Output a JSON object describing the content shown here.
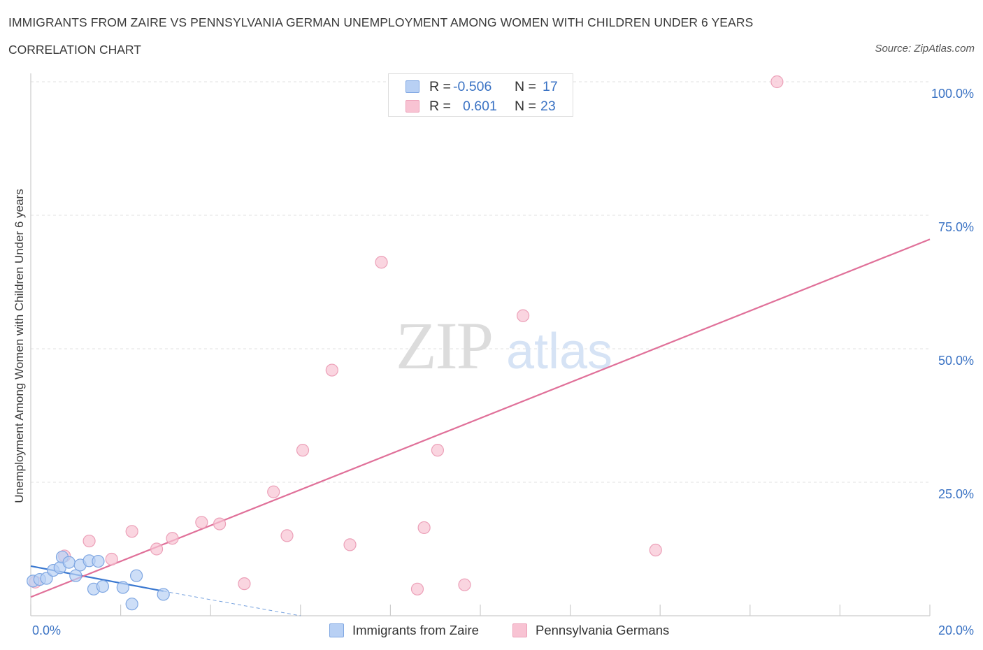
{
  "title": "IMMIGRANTS FROM ZAIRE VS PENNSYLVANIA GERMAN UNEMPLOYMENT AMONG WOMEN WITH CHILDREN UNDER 6 YEARS",
  "subtitle": "CORRELATION CHART",
  "source": "Source: ZipAtlas.com",
  "watermark": {
    "zip": "ZIP",
    "atlas": "atlas"
  },
  "colors": {
    "blue_fill": "#b8d0f4",
    "blue_stroke": "#7ea6e2",
    "blue_line": "#3a78d0",
    "pink_fill": "#f8c3d3",
    "pink_stroke": "#eca0b8",
    "pink_line": "#e07099",
    "tick_text": "#3b73c4",
    "grid": "#e2e2e2"
  },
  "legend": {
    "rows": [
      {
        "r_label": "R =",
        "r_value": "-0.506",
        "n_label": "N =",
        "n_value": "17"
      },
      {
        "r_label": "R =",
        "r_value": "0.601",
        "n_label": "N =",
        "n_value": "23"
      }
    ]
  },
  "bottom_legend": {
    "items": [
      {
        "label": "Immigrants from Zaire"
      },
      {
        "label": "Pennsylvania Germans"
      }
    ]
  },
  "chart_data": {
    "type": "scatter",
    "title": "IMMIGRANTS FROM ZAIRE VS PENNSYLVANIA GERMAN UNEMPLOYMENT AMONG WOMEN WITH CHILDREN UNDER 6 YEARS",
    "xlabel": "",
    "ylabel": "Unemployment Among Women with Children Under 6 years",
    "xlim": [
      0,
      20
    ],
    "ylim": [
      0,
      100
    ],
    "x_ticks": [
      0,
      2,
      4,
      6,
      8,
      10,
      12,
      14,
      16,
      18,
      20
    ],
    "x_tick_labels": [
      {
        "value": 0,
        "label": "0.0%"
      },
      {
        "value": 20,
        "label": "20.0%"
      }
    ],
    "y_tick_labels": [
      {
        "value": 25,
        "label": "25.0%"
      },
      {
        "value": 50,
        "label": "50.0%"
      },
      {
        "value": 75,
        "label": "75.0%"
      },
      {
        "value": 100,
        "label": "100.0%"
      }
    ],
    "grid": true,
    "legend_position": "top-center",
    "series": [
      {
        "name": "Immigrants from Zaire",
        "color": "blue",
        "points": [
          {
            "x": 0.05,
            "y": 6.5
          },
          {
            "x": 0.2,
            "y": 6.8
          },
          {
            "x": 0.35,
            "y": 7.0
          },
          {
            "x": 0.5,
            "y": 8.5
          },
          {
            "x": 0.65,
            "y": 9.0
          },
          {
            "x": 0.7,
            "y": 11.0
          },
          {
            "x": 0.85,
            "y": 10.0
          },
          {
            "x": 1.0,
            "y": 7.5
          },
          {
            "x": 1.1,
            "y": 9.5
          },
          {
            "x": 1.3,
            "y": 10.3
          },
          {
            "x": 1.5,
            "y": 10.2
          },
          {
            "x": 1.4,
            "y": 5.0
          },
          {
            "x": 1.6,
            "y": 5.5
          },
          {
            "x": 2.05,
            "y": 5.3
          },
          {
            "x": 2.35,
            "y": 7.5
          },
          {
            "x": 2.25,
            "y": 2.2
          },
          {
            "x": 2.95,
            "y": 4.0
          }
        ],
        "trend": {
          "x1": 0,
          "y1": 9.3,
          "x2": 2.95,
          "y2": 4.6
        },
        "trend_extension": {
          "x1": 2.95,
          "y1": 4.6,
          "x2": 6.0,
          "y2": 0
        }
      },
      {
        "name": "Pennsylvania Germans",
        "color": "pink",
        "points": [
          {
            "x": 0.1,
            "y": 6.3
          },
          {
            "x": 0.75,
            "y": 11.2
          },
          {
            "x": 1.3,
            "y": 14.0
          },
          {
            "x": 1.8,
            "y": 10.6
          },
          {
            "x": 2.25,
            "y": 15.8
          },
          {
            "x": 2.8,
            "y": 12.5
          },
          {
            "x": 3.15,
            "y": 14.5
          },
          {
            "x": 3.8,
            "y": 17.5
          },
          {
            "x": 4.2,
            "y": 17.2
          },
          {
            "x": 4.75,
            "y": 6.0
          },
          {
            "x": 5.4,
            "y": 23.2
          },
          {
            "x": 5.7,
            "y": 15.0
          },
          {
            "x": 6.05,
            "y": 31.0
          },
          {
            "x": 6.7,
            "y": 46.0
          },
          {
            "x": 7.1,
            "y": 13.3
          },
          {
            "x": 7.8,
            "y": 66.2
          },
          {
            "x": 8.6,
            "y": 5.0
          },
          {
            "x": 8.75,
            "y": 16.5
          },
          {
            "x": 9.05,
            "y": 31.0
          },
          {
            "x": 9.65,
            "y": 5.8
          },
          {
            "x": 10.95,
            "y": 56.2
          },
          {
            "x": 13.9,
            "y": 12.3
          },
          {
            "x": 16.6,
            "y": 100.0
          }
        ],
        "trend": {
          "x1": 0,
          "y1": 3.5,
          "x2": 20,
          "y2": 70.5
        }
      }
    ]
  }
}
